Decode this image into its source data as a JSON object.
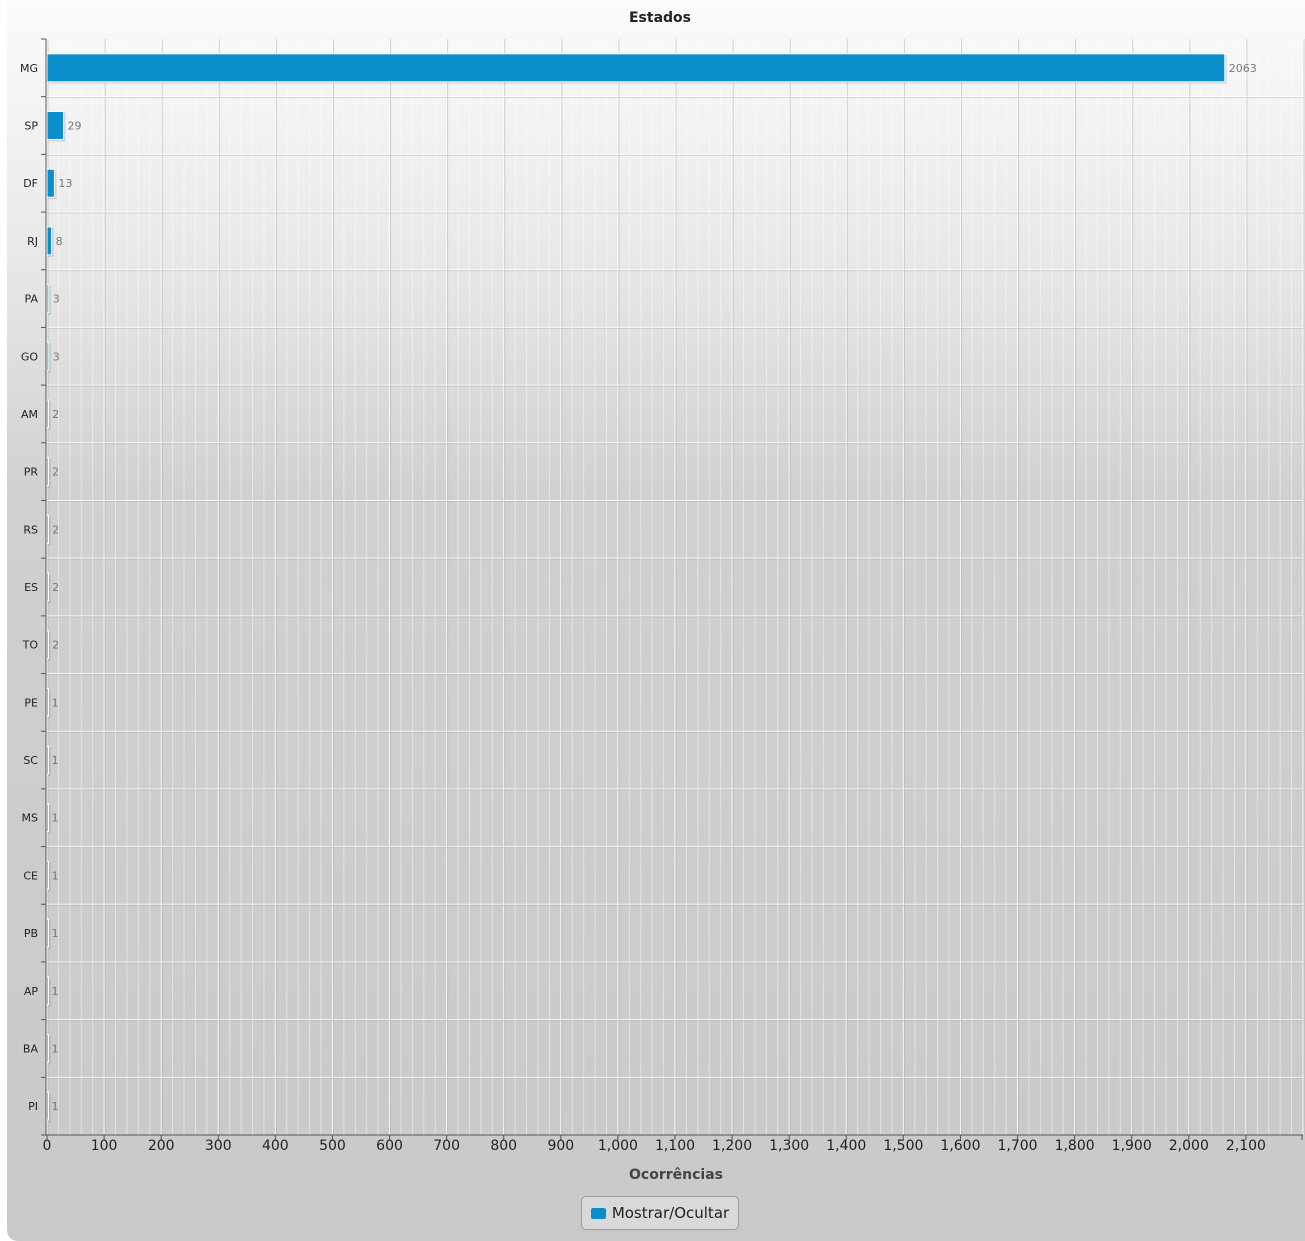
{
  "chart_data": {
    "type": "bar",
    "orientation": "horizontal",
    "title": "Estados",
    "xlabel": "Ocorrências",
    "ylabel": "",
    "categories": [
      "MG",
      "SP",
      "DF",
      "RJ",
      "PA",
      "GO",
      "AM",
      "PR",
      "RS",
      "ES",
      "TO",
      "PE",
      "SC",
      "MS",
      "CE",
      "PB",
      "AP",
      "BA",
      "PI"
    ],
    "series": [
      {
        "name": "Mostrar/Ocultar",
        "values": [
          2063,
          29,
          13,
          8,
          3,
          3,
          2,
          2,
          2,
          2,
          2,
          1,
          1,
          1,
          1,
          1,
          1,
          1,
          1
        ],
        "color": "#0a8fcc"
      }
    ],
    "xlim": [
      0,
      2200
    ],
    "xticks": [
      0,
      100,
      200,
      300,
      400,
      500,
      600,
      700,
      800,
      900,
      1000,
      1100,
      1200,
      1300,
      1400,
      1500,
      1600,
      1700,
      1800,
      1900,
      2000,
      2100
    ],
    "xtick_labels": [
      "0",
      "100",
      "200",
      "300",
      "400",
      "500",
      "600",
      "700",
      "800",
      "900",
      "1,000",
      "1,100",
      "1,200",
      "1,300",
      "1,400",
      "1,500",
      "1,600",
      "1,700",
      "1,800",
      "1,900",
      "2,000",
      "2,100"
    ],
    "grid": true,
    "data_labels": true,
    "legend_position": "bottom-center"
  },
  "legend": {
    "label": "Mostrar/Ocultar",
    "color": "#0a8fcc"
  }
}
